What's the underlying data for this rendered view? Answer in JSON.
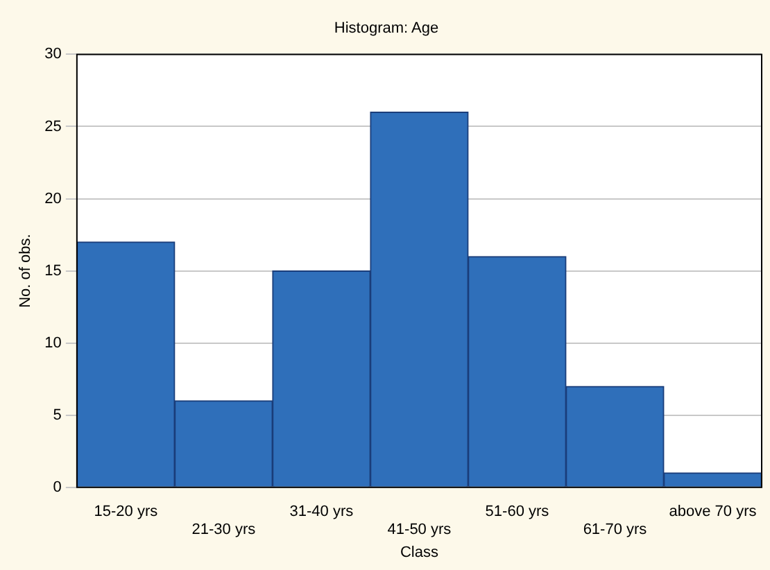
{
  "chart_data": {
    "type": "bar",
    "title": "Histogram: Age",
    "xlabel": "Class",
    "ylabel": "No. of obs.",
    "categories": [
      "15-20 yrs",
      "21-30 yrs",
      "31-40 yrs",
      "41-50 yrs",
      "51-60 yrs",
      "61-70 yrs",
      "above 70 yrs"
    ],
    "values": [
      17,
      6,
      15,
      26,
      16,
      7,
      1
    ],
    "color": "#2f6fba",
    "ylim": [
      0,
      30
    ],
    "yticks": [
      0,
      5,
      10,
      15,
      20,
      25,
      30
    ],
    "grid": "y",
    "legend": false
  }
}
